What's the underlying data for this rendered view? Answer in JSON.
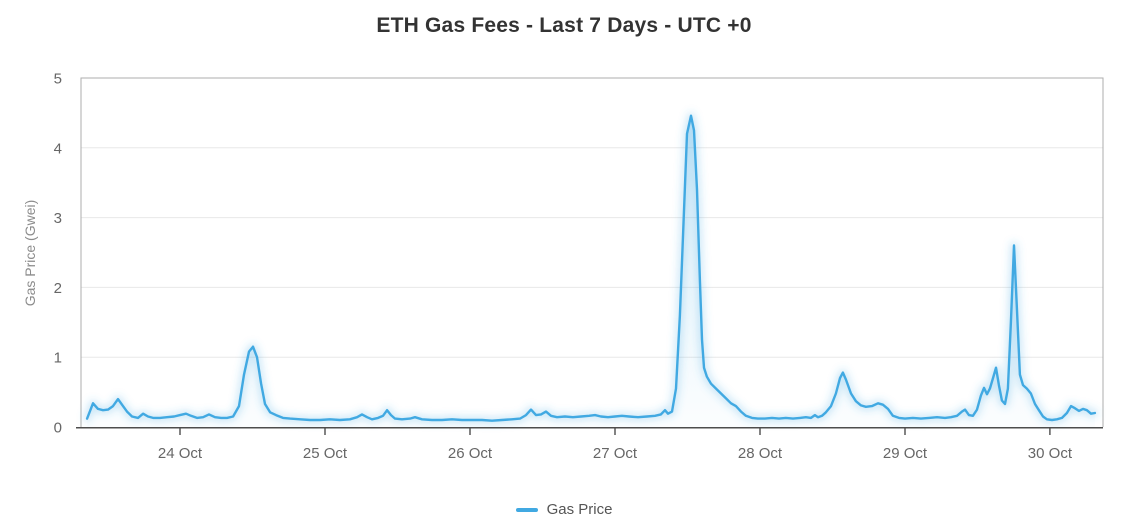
{
  "chart": {
    "colors": {
      "line": "#41a9e2",
      "area_fill_top": "rgba(65,169,226,0.20)",
      "area_fill_bottom": "rgba(65,169,226,0.02)",
      "grid": "#e8e8e8",
      "plot_border": "#adadad",
      "x_axis": "#4d4d4d",
      "tick_text": "#666666",
      "axis_label_text": "#8c8c8c",
      "title_text": "#333333"
    }
  },
  "chart_data": {
    "type": "line",
    "title": "ETH Gas Fees - Last 7 Days - UTC +0",
    "xlabel": "",
    "ylabel": "Gas Price (Gwei)",
    "ylim": [
      0,
      5
    ],
    "y_ticks": [
      0,
      1,
      2,
      3,
      4,
      5
    ],
    "x_range": [
      0.317,
      7.366
    ],
    "x_ticks": [
      {
        "t": 1,
        "label": "24 Oct"
      },
      {
        "t": 2,
        "label": "25 Oct"
      },
      {
        "t": 3,
        "label": "26 Oct"
      },
      {
        "t": 4,
        "label": "27 Oct"
      },
      {
        "t": 5,
        "label": "28 Oct"
      },
      {
        "t": 6,
        "label": "29 Oct"
      },
      {
        "t": 7,
        "label": "30 Oct"
      }
    ],
    "grid": true,
    "legend_position": "bottom",
    "series": [
      {
        "name": "Gas Price",
        "color": "#41a9e2",
        "points": [
          [
            0.359,
            0.12
          ],
          [
            0.4,
            0.34
          ],
          [
            0.434,
            0.26
          ],
          [
            0.469,
            0.24
          ],
          [
            0.503,
            0.25
          ],
          [
            0.538,
            0.3
          ],
          [
            0.572,
            0.4
          ],
          [
            0.607,
            0.3
          ],
          [
            0.634,
            0.22
          ],
          [
            0.669,
            0.15
          ],
          [
            0.71,
            0.13
          ],
          [
            0.745,
            0.19
          ],
          [
            0.779,
            0.15
          ],
          [
            0.814,
            0.13
          ],
          [
            0.862,
            0.13
          ],
          [
            0.91,
            0.14
          ],
          [
            0.959,
            0.15
          ],
          [
            1.0,
            0.17
          ],
          [
            1.041,
            0.19
          ],
          [
            1.076,
            0.16
          ],
          [
            1.117,
            0.13
          ],
          [
            1.159,
            0.14
          ],
          [
            1.2,
            0.18
          ],
          [
            1.241,
            0.14
          ],
          [
            1.283,
            0.13
          ],
          [
            1.324,
            0.13
          ],
          [
            1.366,
            0.15
          ],
          [
            1.407,
            0.3
          ],
          [
            1.441,
            0.75
          ],
          [
            1.476,
            1.08
          ],
          [
            1.503,
            1.15
          ],
          [
            1.531,
            1.0
          ],
          [
            1.559,
            0.62
          ],
          [
            1.586,
            0.33
          ],
          [
            1.621,
            0.21
          ],
          [
            1.662,
            0.17
          ],
          [
            1.71,
            0.13
          ],
          [
            1.759,
            0.12
          ],
          [
            1.828,
            0.11
          ],
          [
            1.897,
            0.1
          ],
          [
            1.966,
            0.1
          ],
          [
            2.034,
            0.11
          ],
          [
            2.103,
            0.1
          ],
          [
            2.172,
            0.11
          ],
          [
            2.221,
            0.14
          ],
          [
            2.255,
            0.18
          ],
          [
            2.29,
            0.14
          ],
          [
            2.324,
            0.11
          ],
          [
            2.366,
            0.13
          ],
          [
            2.4,
            0.16
          ],
          [
            2.428,
            0.24
          ],
          [
            2.455,
            0.17
          ],
          [
            2.483,
            0.12
          ],
          [
            2.531,
            0.11
          ],
          [
            2.586,
            0.12
          ],
          [
            2.621,
            0.14
          ],
          [
            2.669,
            0.11
          ],
          [
            2.738,
            0.1
          ],
          [
            2.807,
            0.1
          ],
          [
            2.876,
            0.11
          ],
          [
            2.945,
            0.1
          ],
          [
            3.014,
            0.1
          ],
          [
            3.083,
            0.1
          ],
          [
            3.152,
            0.09
          ],
          [
            3.221,
            0.1
          ],
          [
            3.29,
            0.11
          ],
          [
            3.345,
            0.12
          ],
          [
            3.386,
            0.17
          ],
          [
            3.421,
            0.25
          ],
          [
            3.455,
            0.17
          ],
          [
            3.49,
            0.18
          ],
          [
            3.524,
            0.22
          ],
          [
            3.559,
            0.16
          ],
          [
            3.6,
            0.14
          ],
          [
            3.655,
            0.15
          ],
          [
            3.71,
            0.14
          ],
          [
            3.766,
            0.15
          ],
          [
            3.821,
            0.16
          ],
          [
            3.862,
            0.17
          ],
          [
            3.903,
            0.15
          ],
          [
            3.952,
            0.14
          ],
          [
            4.0,
            0.15
          ],
          [
            4.048,
            0.16
          ],
          [
            4.097,
            0.15
          ],
          [
            4.159,
            0.14
          ],
          [
            4.221,
            0.15
          ],
          [
            4.276,
            0.16
          ],
          [
            4.317,
            0.18
          ],
          [
            4.345,
            0.24
          ],
          [
            4.366,
            0.19
          ],
          [
            4.393,
            0.22
          ],
          [
            4.421,
            0.55
          ],
          [
            4.448,
            1.6
          ],
          [
            4.476,
            3.1
          ],
          [
            4.497,
            4.2
          ],
          [
            4.524,
            4.46
          ],
          [
            4.545,
            4.25
          ],
          [
            4.566,
            3.4
          ],
          [
            4.586,
            2.1
          ],
          [
            4.6,
            1.25
          ],
          [
            4.614,
            0.85
          ],
          [
            4.634,
            0.72
          ],
          [
            4.662,
            0.62
          ],
          [
            4.697,
            0.55
          ],
          [
            4.731,
            0.48
          ],
          [
            4.766,
            0.41
          ],
          [
            4.8,
            0.34
          ],
          [
            4.834,
            0.3
          ],
          [
            4.869,
            0.22
          ],
          [
            4.903,
            0.16
          ],
          [
            4.945,
            0.13
          ],
          [
            4.986,
            0.12
          ],
          [
            5.034,
            0.12
          ],
          [
            5.083,
            0.13
          ],
          [
            5.131,
            0.12
          ],
          [
            5.179,
            0.13
          ],
          [
            5.228,
            0.12
          ],
          [
            5.276,
            0.13
          ],
          [
            5.317,
            0.14
          ],
          [
            5.352,
            0.13
          ],
          [
            5.379,
            0.17
          ],
          [
            5.4,
            0.14
          ],
          [
            5.428,
            0.16
          ],
          [
            5.455,
            0.21
          ],
          [
            5.49,
            0.3
          ],
          [
            5.524,
            0.48
          ],
          [
            5.552,
            0.7
          ],
          [
            5.572,
            0.78
          ],
          [
            5.593,
            0.68
          ],
          [
            5.628,
            0.48
          ],
          [
            5.662,
            0.37
          ],
          [
            5.697,
            0.31
          ],
          [
            5.731,
            0.29
          ],
          [
            5.772,
            0.3
          ],
          [
            5.814,
            0.34
          ],
          [
            5.848,
            0.32
          ],
          [
            5.883,
            0.26
          ],
          [
            5.917,
            0.16
          ],
          [
            5.959,
            0.13
          ],
          [
            6.0,
            0.12
          ],
          [
            6.055,
            0.13
          ],
          [
            6.11,
            0.12
          ],
          [
            6.166,
            0.13
          ],
          [
            6.221,
            0.14
          ],
          [
            6.276,
            0.13
          ],
          [
            6.317,
            0.14
          ],
          [
            6.359,
            0.16
          ],
          [
            6.393,
            0.22
          ],
          [
            6.414,
            0.25
          ],
          [
            6.441,
            0.17
          ],
          [
            6.469,
            0.16
          ],
          [
            6.497,
            0.25
          ],
          [
            6.524,
            0.45
          ],
          [
            6.545,
            0.56
          ],
          [
            6.566,
            0.47
          ],
          [
            6.586,
            0.55
          ],
          [
            6.607,
            0.7
          ],
          [
            6.628,
            0.85
          ],
          [
            6.648,
            0.6
          ],
          [
            6.669,
            0.38
          ],
          [
            6.69,
            0.33
          ],
          [
            6.71,
            0.55
          ],
          [
            6.731,
            1.5
          ],
          [
            6.752,
            2.6
          ],
          [
            6.772,
            1.7
          ],
          [
            6.793,
            0.75
          ],
          [
            6.814,
            0.6
          ],
          [
            6.841,
            0.55
          ],
          [
            6.869,
            0.48
          ],
          [
            6.897,
            0.33
          ],
          [
            6.924,
            0.24
          ],
          [
            6.952,
            0.15
          ],
          [
            6.979,
            0.11
          ],
          [
            7.014,
            0.1
          ],
          [
            7.048,
            0.11
          ],
          [
            7.083,
            0.13
          ],
          [
            7.117,
            0.2
          ],
          [
            7.145,
            0.3
          ],
          [
            7.172,
            0.27
          ],
          [
            7.2,
            0.23
          ],
          [
            7.228,
            0.26
          ],
          [
            7.255,
            0.24
          ],
          [
            7.283,
            0.19
          ],
          [
            7.31,
            0.2
          ]
        ]
      }
    ]
  }
}
